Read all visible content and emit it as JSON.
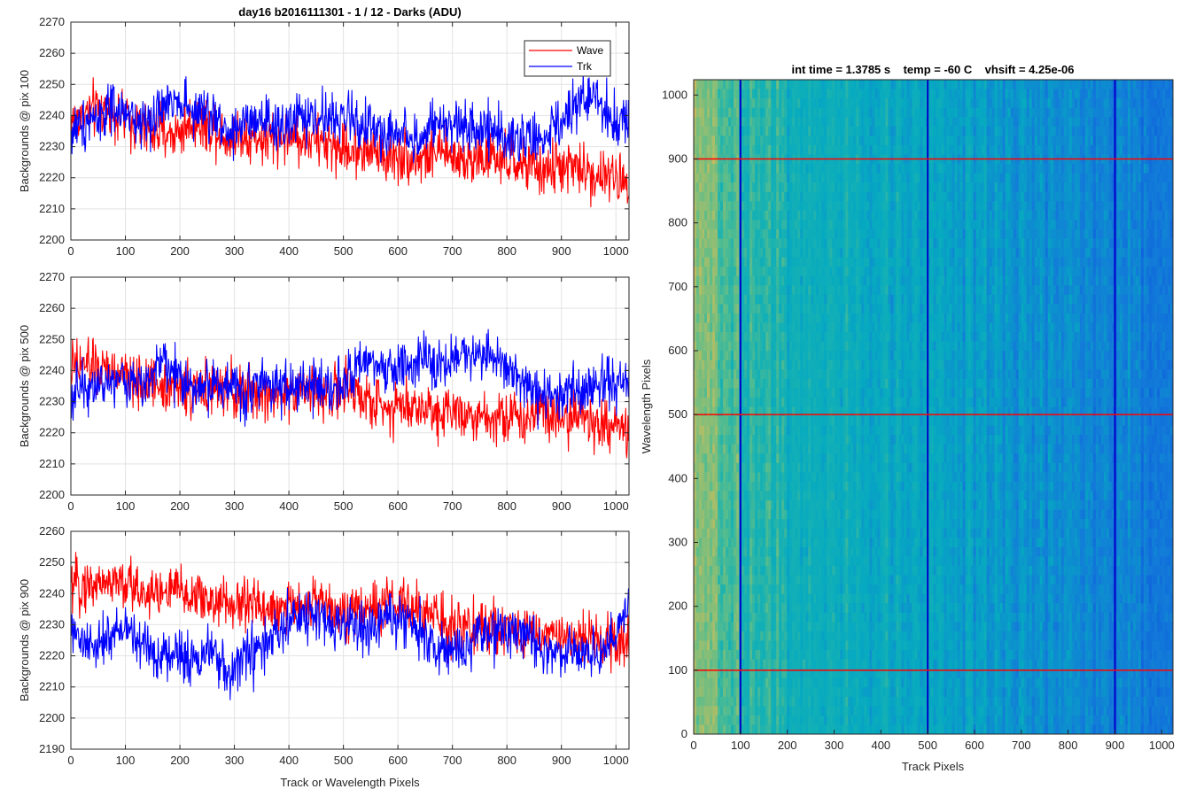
{
  "chart_data": [
    {
      "type": "line",
      "title": "day16 b2016111301 - 1 / 12 - Darks (ADU)",
      "xlabel": "",
      "ylabel": "Backgrounds @ pix 100",
      "xlim": [
        0,
        1024
      ],
      "ylim": [
        2200,
        2270
      ],
      "xticks": [
        "0",
        "100",
        "200",
        "300",
        "400",
        "500",
        "600",
        "700",
        "800",
        "900",
        "1000"
      ],
      "yticks": [
        "2200",
        "2210",
        "2220",
        "2230",
        "2240",
        "2250",
        "2260",
        "2270"
      ],
      "grid": true,
      "legend": {
        "position": "top-right",
        "entries": [
          "Wave",
          "Trk"
        ]
      },
      "series": [
        {
          "name": "Wave",
          "color": "#ff0000",
          "x_range": [
            0,
            1024
          ],
          "values": [
            2238,
            2241,
            2242,
            2240,
            2236,
            2235,
            2234,
            2238,
            2237,
            2233,
            2234,
            2232,
            2233,
            2233,
            2232,
            2230,
            2229,
            2229,
            2227,
            2227,
            2226,
            2228,
            2227,
            2226,
            2226,
            2225,
            2224,
            2222,
            2224,
            2223,
            2221,
            2220,
            2219
          ]
        },
        {
          "name": "Trk",
          "color": "#0000ff",
          "x_range": [
            0,
            1024
          ],
          "values": [
            2234,
            2239,
            2241,
            2240,
            2238,
            2240,
            2247,
            2241,
            2240,
            2235,
            2237,
            2237,
            2235,
            2240,
            2238,
            2240,
            2239,
            2236,
            2234,
            2235,
            2232,
            2237,
            2236,
            2237,
            2236,
            2234,
            2232,
            2232,
            2236,
            2244,
            2247,
            2238,
            2240
          ]
        }
      ]
    },
    {
      "type": "line",
      "title": "",
      "xlabel": "",
      "ylabel": "Backgrounds @ pix 500",
      "xlim": [
        0,
        1024
      ],
      "ylim": [
        2200,
        2270
      ],
      "xticks": [
        "0",
        "100",
        "200",
        "300",
        "400",
        "500",
        "600",
        "700",
        "800",
        "900",
        "1000"
      ],
      "yticks": [
        "2200",
        "2210",
        "2220",
        "2230",
        "2240",
        "2250",
        "2260",
        "2270"
      ],
      "grid": true,
      "series": [
        {
          "name": "Wave",
          "color": "#ff0000",
          "x_range": [
            0,
            1024
          ],
          "values": [
            2240,
            2242,
            2240,
            2238,
            2236,
            2236,
            2235,
            2233,
            2234,
            2233,
            2233,
            2232,
            2232,
            2235,
            2233,
            2232,
            2234,
            2230,
            2229,
            2229,
            2228,
            2227,
            2228,
            2226,
            2226,
            2225,
            2224,
            2229,
            2225,
            2226,
            2223,
            2222,
            2220
          ]
        },
        {
          "name": "Trk",
          "color": "#0000ff",
          "x_range": [
            0,
            1024
          ],
          "values": [
            2232,
            2236,
            2236,
            2237,
            2235,
            2243,
            2239,
            2234,
            2236,
            2235,
            2234,
            2236,
            2236,
            2234,
            2235,
            2236,
            2237,
            2242,
            2240,
            2241,
            2243,
            2242,
            2244,
            2245,
            2247,
            2242,
            2236,
            2231,
            2233,
            2234,
            2235,
            2236,
            2238
          ]
        }
      ]
    },
    {
      "type": "line",
      "title": "",
      "xlabel": "Track or Wavelength Pixels",
      "ylabel": "Backgrounds @ pix 900",
      "xlim": [
        0,
        1024
      ],
      "ylim": [
        2190,
        2260
      ],
      "xticks": [
        "0",
        "100",
        "200",
        "300",
        "400",
        "500",
        "600",
        "700",
        "800",
        "900",
        "1000"
      ],
      "yticks": [
        "2190",
        "2200",
        "2210",
        "2220",
        "2230",
        "2240",
        "2250",
        "2260"
      ],
      "grid": true,
      "series": [
        {
          "name": "Wave",
          "color": "#ff0000",
          "x_range": [
            0,
            1024
          ],
          "values": [
            2242,
            2243,
            2244,
            2243,
            2241,
            2240,
            2241,
            2239,
            2238,
            2236,
            2237,
            2236,
            2235,
            2236,
            2237,
            2236,
            2234,
            2235,
            2236,
            2237,
            2234,
            2232,
            2230,
            2229,
            2228,
            2229,
            2228,
            2227,
            2227,
            2225,
            2226,
            2224,
            2224
          ]
        },
        {
          "name": "Trk",
          "color": "#0000ff",
          "x_range": [
            0,
            1024
          ],
          "values": [
            2228,
            2222,
            2225,
            2229,
            2225,
            2220,
            2221,
            2219,
            2222,
            2213,
            2220,
            2222,
            2228,
            2232,
            2232,
            2231,
            2230,
            2228,
            2231,
            2232,
            2229,
            2222,
            2220,
            2225,
            2228,
            2227,
            2228,
            2224,
            2221,
            2222,
            2220,
            2223,
            2238
          ]
        }
      ]
    },
    {
      "type": "heatmap",
      "title": "int time = 1.3785 s    temp = -60 C    vhsift = 4.25e-06",
      "xlabel": "Track Pixels",
      "ylabel": "Wavelength Pixels",
      "xlim": [
        0,
        1024
      ],
      "ylim": [
        0,
        1024
      ],
      "xticks": [
        "0",
        "100",
        "200",
        "300",
        "400",
        "500",
        "600",
        "700",
        "800",
        "900",
        "1000"
      ],
      "yticks": [
        "0",
        "100",
        "200",
        "300",
        "400",
        "500",
        "600",
        "700",
        "800",
        "900",
        "1000"
      ],
      "colormap": "parula",
      "column_levels": [
        0.72,
        0.68,
        0.62,
        0.58,
        0.56,
        0.55,
        0.53,
        0.52,
        0.51,
        0.5,
        0.5,
        0.48,
        0.46,
        0.45,
        0.45,
        0.46,
        0.44,
        0.43,
        0.42,
        0.41,
        0.4,
        0.38,
        0.36,
        0.36,
        0.35,
        0.34,
        0.33,
        0.32,
        0.3,
        0.28,
        0.27,
        0.26
      ],
      "markers": {
        "vertical_lines": {
          "color": "#0000cc",
          "x": [
            100,
            500,
            900
          ]
        },
        "horizontal_lines": {
          "color": "#ff0000",
          "y": [
            100,
            500,
            900
          ]
        }
      }
    }
  ]
}
